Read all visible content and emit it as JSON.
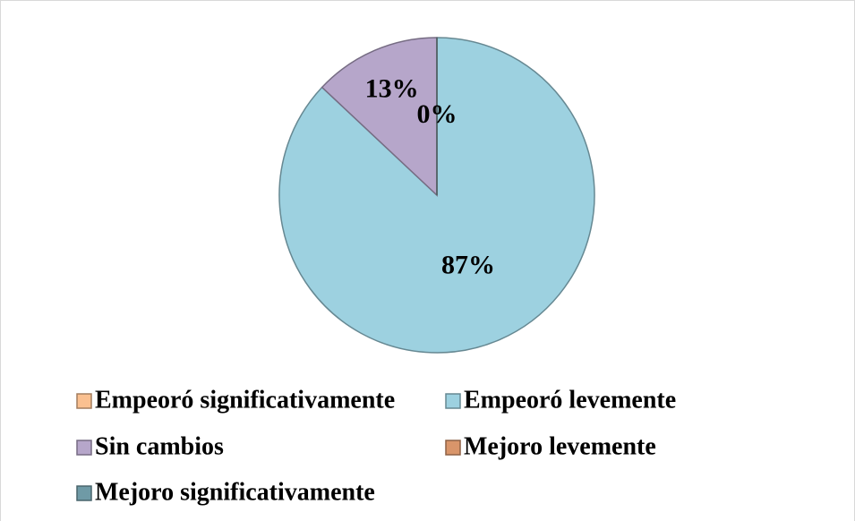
{
  "chart_data": {
    "type": "pie",
    "categories": [
      "Empeoró significativamente",
      "Empeoró levemente",
      "Sin cambios",
      "Mejoro levemente",
      "Mejoro significativamente"
    ],
    "values": [
      0,
      87,
      13,
      0,
      0
    ],
    "value_labels": [
      "0%",
      "87%",
      "13%",
      null,
      null
    ],
    "colors": [
      "#fac090",
      "#9dd1e0",
      "#b6a6ca",
      "#d9956a",
      "#6f9aa6"
    ],
    "legend": "bottom"
  }
}
